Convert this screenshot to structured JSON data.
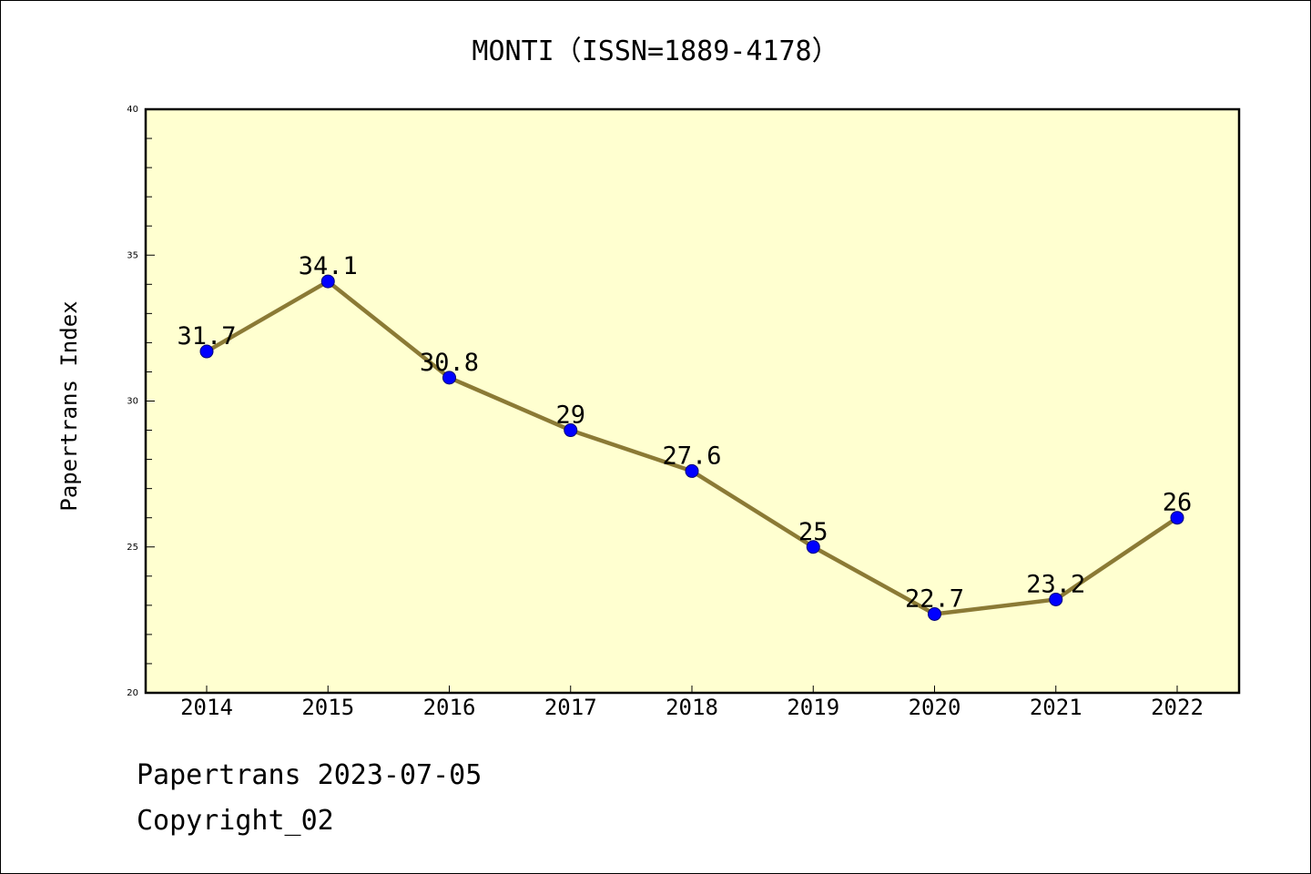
{
  "chart_data": {
    "type": "line",
    "title": "MONTI（ISSN=1889-4178）",
    "xlabel": "",
    "ylabel": "Papertrans Index",
    "categories": [
      "2014",
      "2015",
      "2016",
      "2017",
      "2018",
      "2019",
      "2020",
      "2021",
      "2022"
    ],
    "series": [
      {
        "values": [
          31.7,
          34.1,
          30.8,
          29,
          27.6,
          25,
          22.7,
          23.2,
          26
        ],
        "labels": [
          "31.7",
          "34.1",
          "30.8",
          "29",
          "27.6",
          "25",
          "22.7",
          "23.2",
          "26"
        ]
      }
    ],
    "ylim": [
      20,
      40
    ],
    "yticks": [
      "20",
      "25",
      "30",
      "35",
      "40"
    ],
    "grid": false,
    "legend": "none",
    "colors": {
      "plot_background": "#ffffd0",
      "line": "#8b7a35",
      "marker": "#0000ff",
      "marker_edge": "#00007a"
    }
  },
  "footer": {
    "date": "Papertrans 2023-07-05",
    "copyright": "Copyright_02"
  }
}
